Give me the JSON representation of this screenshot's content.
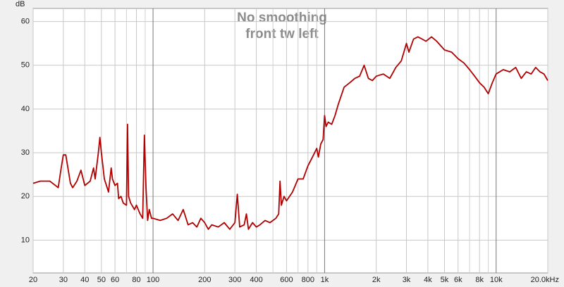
{
  "chart_data": {
    "type": "line",
    "title": "No smoothing",
    "subtitle": "front tw left",
    "y_label": "dB",
    "log_x": true,
    "grid": true,
    "color": "#b00000",
    "xlim": [
      20,
      20000
    ],
    "ylim": [
      2.5,
      63
    ],
    "xticks": [
      20,
      30,
      40,
      50,
      60,
      80,
      100,
      200,
      300,
      400,
      600,
      800,
      {
        "value": 1000,
        "label": "1k"
      },
      {
        "value": 2000,
        "label": "2k"
      },
      {
        "value": 3000,
        "label": "3k"
      },
      {
        "value": 4000,
        "label": "4k"
      },
      {
        "value": 5000,
        "label": "5k"
      },
      {
        "value": 6000,
        "label": "6k"
      },
      {
        "value": 8000,
        "label": "8k"
      },
      {
        "value": 10000,
        "label": "10k"
      },
      {
        "value": 20000,
        "label": "20.0kHz"
      }
    ],
    "xminor": [
      70,
      90,
      500,
      700,
      900,
      7000,
      9000
    ],
    "yticks": [
      10,
      20,
      30,
      40,
      50,
      60
    ],
    "x": [
      20,
      22,
      25,
      27,
      28,
      29,
      30,
      31,
      33,
      34,
      36,
      38,
      40,
      43,
      45,
      46,
      48,
      49,
      50,
      52,
      54,
      55,
      57,
      58,
      60,
      62,
      63,
      65,
      67,
      70,
      71,
      72,
      74,
      78,
      80,
      84,
      87,
      89,
      91,
      93,
      95,
      98,
      100,
      110,
      120,
      130,
      140,
      150,
      160,
      170,
      180,
      190,
      200,
      210,
      220,
      240,
      260,
      280,
      300,
      310,
      320,
      340,
      350,
      360,
      380,
      400,
      420,
      450,
      480,
      520,
      540,
      550,
      560,
      580,
      600,
      650,
      700,
      750,
      800,
      850,
      900,
      920,
      950,
      980,
      1000,
      1020,
      1050,
      1100,
      1150,
      1200,
      1300,
      1400,
      1500,
      1600,
      1700,
      1800,
      1900,
      2000,
      2200,
      2400,
      2600,
      2800,
      3000,
      3100,
      3300,
      3500,
      3700,
      3900,
      4200,
      4500,
      5000,
      5500,
      6000,
      6500,
      7000,
      7500,
      8000,
      8500,
      9000,
      9500,
      10000,
      11000,
      12000,
      13000,
      14000,
      15000,
      16000,
      17000,
      18000,
      19000,
      20000
    ],
    "values": [
      23,
      23.5,
      23.5,
      22.5,
      22,
      26,
      29.5,
      29.5,
      23,
      22,
      23.5,
      26,
      22.5,
      23.5,
      26.5,
      24,
      30,
      33.5,
      30,
      24,
      22,
      21,
      26.5,
      24,
      22.5,
      23,
      19.5,
      20,
      18.5,
      18,
      36.5,
      20,
      18.5,
      17,
      18,
      16,
      15,
      34,
      22,
      14.5,
      17,
      15,
      15,
      14.5,
      15,
      16,
      14.5,
      17,
      13.5,
      14,
      13,
      15,
      14,
      12.5,
      13.5,
      13,
      14,
      12.5,
      14,
      20.5,
      13,
      13.5,
      16,
      12.5,
      14,
      13,
      13.5,
      14.5,
      14,
      15,
      16,
      23.5,
      18,
      20,
      19,
      21,
      24,
      24,
      27,
      29,
      31,
      29,
      32,
      33,
      38.5,
      36,
      37,
      36.5,
      38.5,
      41,
      45,
      46,
      47,
      47.5,
      50,
      47,
      46.5,
      47.5,
      48,
      47,
      49.5,
      51,
      55,
      53,
      56,
      56.5,
      56,
      55.5,
      56.5,
      55.5,
      53.5,
      53,
      51.5,
      50.5,
      49,
      47.5,
      46,
      45,
      43.5,
      46,
      48,
      49,
      48.5,
      49.5,
      47,
      48.5,
      48,
      49.5,
      48.5,
      48,
      46.5
    ]
  }
}
